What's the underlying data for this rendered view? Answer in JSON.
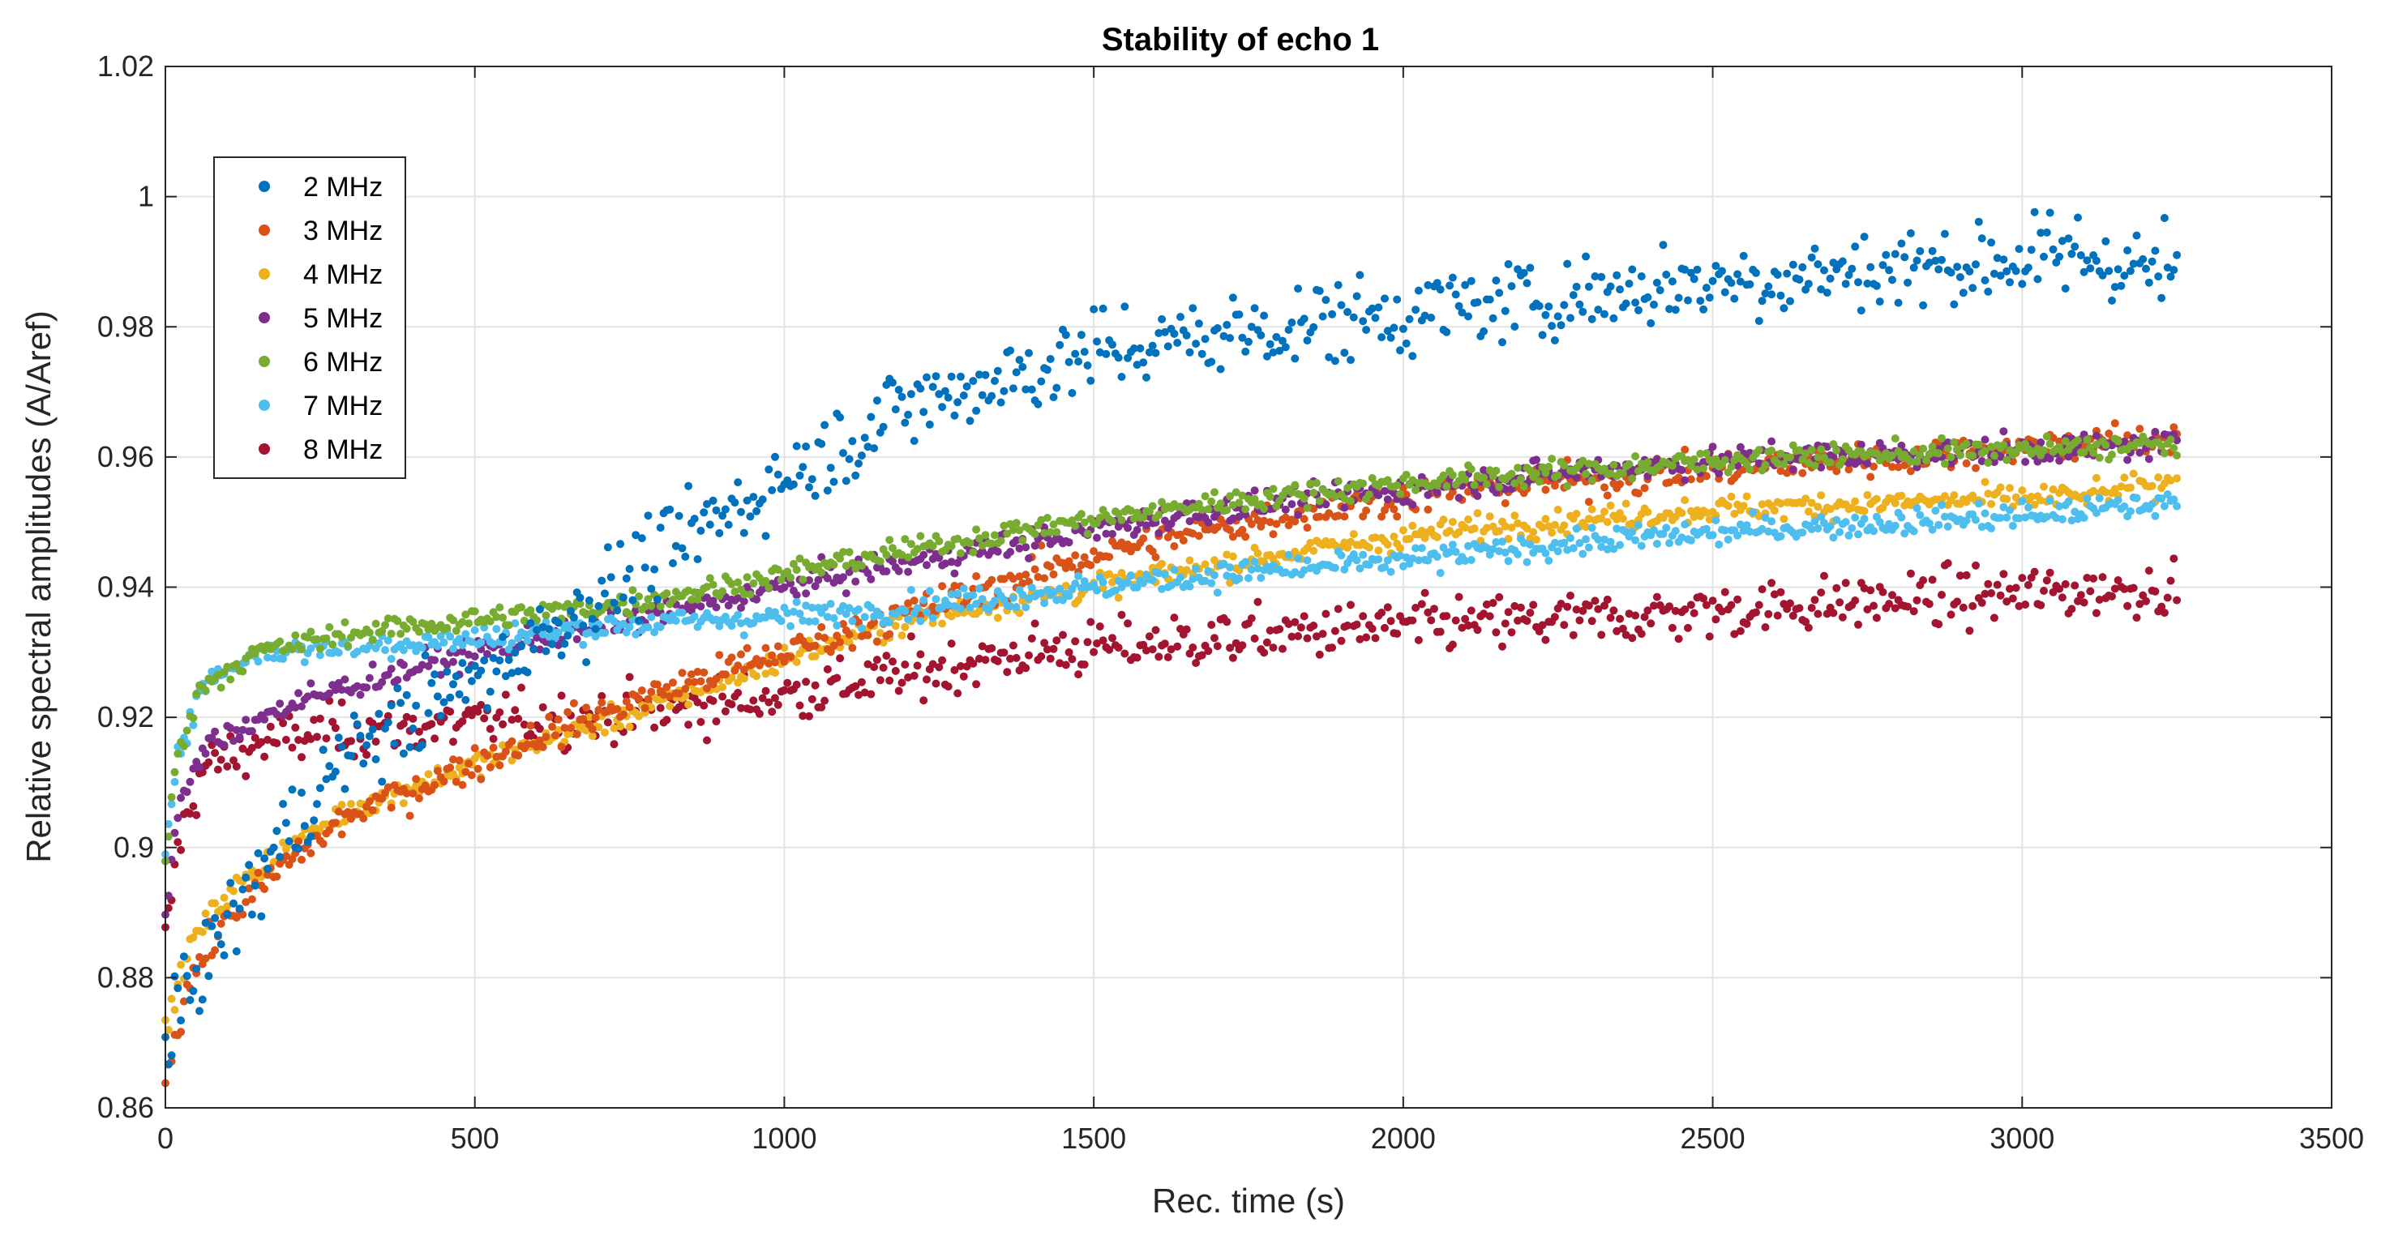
{
  "chart_data": {
    "type": "scatter",
    "title": "Stability of echo 1",
    "xlabel": "Rec. time (s)",
    "ylabel": "Relative spectral amplitudes (A/Aref)",
    "xlim": [
      0,
      3500
    ],
    "ylim": [
      0.86,
      1.02
    ],
    "xticks": [
      0,
      500,
      1000,
      1500,
      2000,
      2500,
      3000,
      3500
    ],
    "xtick_labels": [
      "0",
      "500",
      "1000",
      "1500",
      "2000",
      "2500",
      "3000",
      "3500"
    ],
    "yticks": [
      0.86,
      0.88,
      0.9,
      0.92,
      0.94,
      0.96,
      0.98,
      1.0,
      1.02
    ],
    "ytick_labels": [
      "0.86",
      "0.88",
      "0.9",
      "0.92",
      "0.94",
      "0.96",
      "0.98",
      "1",
      "1.02"
    ],
    "grid": true,
    "legend_position": "top-left",
    "sample_interval_s": 5,
    "x_range_data": [
      0,
      3250
    ],
    "series": [
      {
        "name": "2 MHz",
        "color": "#0072BD",
        "noise": 0.0055,
        "trend": [
          [
            0,
            0.865
          ],
          [
            30,
            0.878
          ],
          [
            100,
            0.888
          ],
          [
            200,
            0.903
          ],
          [
            300,
            0.915
          ],
          [
            450,
            0.923
          ],
          [
            600,
            0.932
          ],
          [
            800,
            0.945
          ],
          [
            1000,
            0.957
          ],
          [
            1200,
            0.968
          ],
          [
            1500,
            0.976
          ],
          [
            1800,
            0.98
          ],
          [
            2100,
            0.983
          ],
          [
            2500,
            0.987
          ],
          [
            2800,
            0.989
          ],
          [
            3100,
            0.991
          ],
          [
            3250,
            0.988
          ]
        ]
      },
      {
        "name": "3 MHz",
        "color": "#D95319",
        "noise": 0.0022,
        "trend": [
          [
            0,
            0.865
          ],
          [
            40,
            0.88
          ],
          [
            100,
            0.889
          ],
          [
            200,
            0.898
          ],
          [
            300,
            0.905
          ],
          [
            450,
            0.911
          ],
          [
            600,
            0.917
          ],
          [
            800,
            0.924
          ],
          [
            1000,
            0.93
          ],
          [
            1200,
            0.936
          ],
          [
            1500,
            0.945
          ],
          [
            1800,
            0.951
          ],
          [
            2100,
            0.955
          ],
          [
            2500,
            0.958
          ],
          [
            2800,
            0.96
          ],
          [
            3100,
            0.962
          ],
          [
            3250,
            0.963
          ]
        ]
      },
      {
        "name": "4 MHz",
        "color": "#EDB120",
        "noise": 0.0016,
        "trend": [
          [
            0,
            0.872
          ],
          [
            40,
            0.885
          ],
          [
            100,
            0.893
          ],
          [
            200,
            0.9
          ],
          [
            300,
            0.906
          ],
          [
            450,
            0.911
          ],
          [
            600,
            0.916
          ],
          [
            800,
            0.922
          ],
          [
            1000,
            0.929
          ],
          [
            1200,
            0.935
          ],
          [
            1500,
            0.94
          ],
          [
            1800,
            0.945
          ],
          [
            2100,
            0.949
          ],
          [
            2500,
            0.952
          ],
          [
            2800,
            0.953
          ],
          [
            3100,
            0.954
          ],
          [
            3250,
            0.956
          ]
        ]
      },
      {
        "name": "5 MHz",
        "color": "#7E2F8E",
        "noise": 0.0018,
        "trend": [
          [
            0,
            0.89
          ],
          [
            20,
            0.905
          ],
          [
            60,
            0.915
          ],
          [
            150,
            0.92
          ],
          [
            300,
            0.925
          ],
          [
            500,
            0.93
          ],
          [
            700,
            0.934
          ],
          [
            900,
            0.938
          ],
          [
            1100,
            0.942
          ],
          [
            1400,
            0.947
          ],
          [
            1700,
            0.952
          ],
          [
            2000,
            0.955
          ],
          [
            2300,
            0.958
          ],
          [
            2600,
            0.96
          ],
          [
            3000,
            0.961
          ],
          [
            3250,
            0.962
          ]
        ]
      },
      {
        "name": "6 MHz",
        "color": "#77AC30",
        "noise": 0.0015,
        "trend": [
          [
            0,
            0.898
          ],
          [
            20,
            0.915
          ],
          [
            60,
            0.925
          ],
          [
            150,
            0.93
          ],
          [
            300,
            0.933
          ],
          [
            500,
            0.935
          ],
          [
            700,
            0.937
          ],
          [
            900,
            0.94
          ],
          [
            1100,
            0.944
          ],
          [
            1400,
            0.949
          ],
          [
            1700,
            0.953
          ],
          [
            2000,
            0.956
          ],
          [
            2300,
            0.958
          ],
          [
            2600,
            0.96
          ],
          [
            3000,
            0.961
          ],
          [
            3250,
            0.962
          ]
        ]
      },
      {
        "name": "7 MHz",
        "color": "#4DBEEE",
        "noise": 0.0017,
        "trend": [
          [
            0,
            0.9
          ],
          [
            20,
            0.915
          ],
          [
            60,
            0.925
          ],
          [
            150,
            0.93
          ],
          [
            300,
            0.931
          ],
          [
            500,
            0.932
          ],
          [
            700,
            0.934
          ],
          [
            900,
            0.935
          ],
          [
            1100,
            0.936
          ],
          [
            1400,
            0.939
          ],
          [
            1700,
            0.942
          ],
          [
            2000,
            0.944
          ],
          [
            2300,
            0.947
          ],
          [
            2600,
            0.949
          ],
          [
            3000,
            0.951
          ],
          [
            3250,
            0.953
          ]
        ]
      },
      {
        "name": "8 MHz",
        "color": "#A2142F",
        "noise": 0.0035,
        "trend": [
          [
            0,
            0.885
          ],
          [
            20,
            0.9
          ],
          [
            60,
            0.912
          ],
          [
            150,
            0.916
          ],
          [
            300,
            0.918
          ],
          [
            500,
            0.919
          ],
          [
            700,
            0.92
          ],
          [
            900,
            0.922
          ],
          [
            1100,
            0.925
          ],
          [
            1400,
            0.93
          ],
          [
            1700,
            0.932
          ],
          [
            2000,
            0.934
          ],
          [
            2300,
            0.935
          ],
          [
            2600,
            0.937
          ],
          [
            3000,
            0.939
          ],
          [
            3250,
            0.94
          ]
        ]
      }
    ]
  }
}
